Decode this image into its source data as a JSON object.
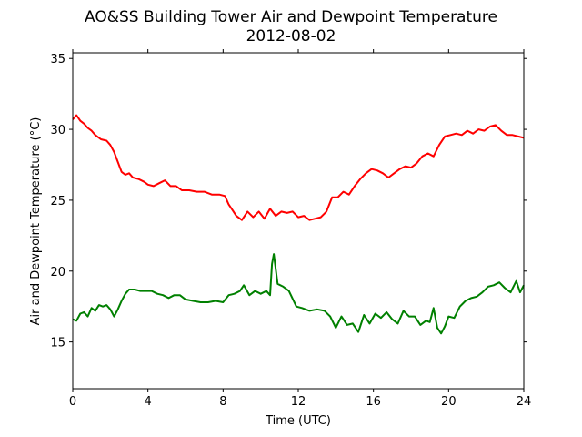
{
  "chart_data": {
    "type": "line",
    "title": "AO&SS Building Tower Air and Dewpoint Temperature",
    "subtitle": "2012-08-02",
    "xlabel": "Time (UTC)",
    "ylabel": "Air and Dewpoint Temperature (°C)",
    "xlim": [
      0,
      24
    ],
    "ylim": [
      11.7,
      35.4
    ],
    "xticks": [
      0,
      4,
      8,
      12,
      16,
      20,
      24
    ],
    "yticks": [
      15,
      20,
      25,
      30,
      35
    ],
    "grid": false,
    "legend": "none",
    "series": [
      {
        "color": "#ff0000",
        "x": [
          0,
          0.2,
          0.4,
          0.6,
          0.8,
          1.0,
          1.2,
          1.5,
          1.8,
          2.0,
          2.2,
          2.4,
          2.6,
          2.8,
          3.0,
          3.2,
          3.5,
          3.8,
          4.0,
          4.3,
          4.6,
          4.9,
          5.2,
          5.5,
          5.8,
          6.2,
          6.6,
          7.0,
          7.4,
          7.8,
          8.1,
          8.3,
          8.5,
          8.7,
          9.0,
          9.3,
          9.6,
          9.9,
          10.2,
          10.5,
          10.8,
          11.1,
          11.4,
          11.7,
          12.0,
          12.3,
          12.6,
          12.9,
          13.2,
          13.5,
          13.8,
          14.1,
          14.4,
          14.7,
          15.0,
          15.3,
          15.6,
          15.9,
          16.2,
          16.5,
          16.8,
          17.1,
          17.4,
          17.7,
          18.0,
          18.3,
          18.6,
          18.9,
          19.2,
          19.5,
          19.8,
          20.1,
          20.4,
          20.7,
          21.0,
          21.3,
          21.6,
          21.9,
          22.2,
          22.5,
          22.8,
          23.1,
          23.4,
          23.7,
          24.0
        ],
        "y": [
          30.7,
          31.0,
          30.6,
          30.4,
          30.1,
          29.9,
          29.6,
          29.3,
          29.2,
          28.9,
          28.4,
          27.7,
          27.0,
          26.8,
          26.9,
          26.6,
          26.5,
          26.3,
          26.1,
          26.0,
          26.2,
          26.4,
          26.0,
          26.0,
          25.7,
          25.7,
          25.6,
          25.6,
          25.4,
          25.4,
          25.3,
          24.7,
          24.3,
          23.9,
          23.6,
          24.2,
          23.8,
          24.2,
          23.7,
          24.4,
          23.9,
          24.2,
          24.1,
          24.2,
          23.8,
          23.9,
          23.6,
          23.7,
          23.8,
          24.2,
          25.2,
          25.2,
          25.6,
          25.4,
          26.0,
          26.5,
          26.9,
          27.2,
          27.1,
          26.9,
          26.6,
          26.9,
          27.2,
          27.4,
          27.3,
          27.6,
          28.1,
          28.3,
          28.1,
          28.9,
          29.5,
          29.6,
          29.7,
          29.6,
          29.9,
          29.7,
          30.0,
          29.9,
          30.2,
          30.3,
          29.9,
          29.6,
          29.6,
          29.5,
          29.4
        ]
      },
      {
        "color": "#008000",
        "x": [
          0,
          0.2,
          0.4,
          0.6,
          0.8,
          1.0,
          1.2,
          1.4,
          1.6,
          1.8,
          2.0,
          2.2,
          2.4,
          2.6,
          2.8,
          3.0,
          3.3,
          3.6,
          3.9,
          4.2,
          4.5,
          4.8,
          5.1,
          5.4,
          5.7,
          6.0,
          6.4,
          6.8,
          7.2,
          7.6,
          8.0,
          8.3,
          8.6,
          8.9,
          9.1,
          9.4,
          9.7,
          10.0,
          10.3,
          10.5,
          10.6,
          10.7,
          10.9,
          11.2,
          11.5,
          11.9,
          12.2,
          12.6,
          13.0,
          13.4,
          13.7,
          14.0,
          14.3,
          14.6,
          14.9,
          15.2,
          15.5,
          15.8,
          16.1,
          16.4,
          16.7,
          17.0,
          17.3,
          17.6,
          17.9,
          18.2,
          18.5,
          18.8,
          19.0,
          19.2,
          19.4,
          19.6,
          19.8,
          20.0,
          20.3,
          20.6,
          20.9,
          21.2,
          21.5,
          21.8,
          22.1,
          22.4,
          22.7,
          23.0,
          23.3,
          23.6,
          23.8,
          24.0
        ],
        "y": [
          16.6,
          16.5,
          17.0,
          17.1,
          16.8,
          17.4,
          17.2,
          17.6,
          17.5,
          17.6,
          17.3,
          16.8,
          17.3,
          17.9,
          18.4,
          18.7,
          18.7,
          18.6,
          18.6,
          18.6,
          18.4,
          18.3,
          18.1,
          18.3,
          18.3,
          18.0,
          17.9,
          17.8,
          17.8,
          17.9,
          17.8,
          18.3,
          18.4,
          18.6,
          19.0,
          18.3,
          18.6,
          18.4,
          18.6,
          18.3,
          20.5,
          21.2,
          19.1,
          18.9,
          18.6,
          17.5,
          17.4,
          17.2,
          17.3,
          17.2,
          16.8,
          16.0,
          16.8,
          16.2,
          16.3,
          15.7,
          16.9,
          16.3,
          17.0,
          16.7,
          17.1,
          16.6,
          16.3,
          17.2,
          16.8,
          16.8,
          16.2,
          16.5,
          16.4,
          17.4,
          16.0,
          15.6,
          16.1,
          16.8,
          16.7,
          17.5,
          17.9,
          18.1,
          18.2,
          18.5,
          18.9,
          19.0,
          19.2,
          18.8,
          18.5,
          19.3,
          18.5,
          19.0
        ]
      }
    ]
  }
}
